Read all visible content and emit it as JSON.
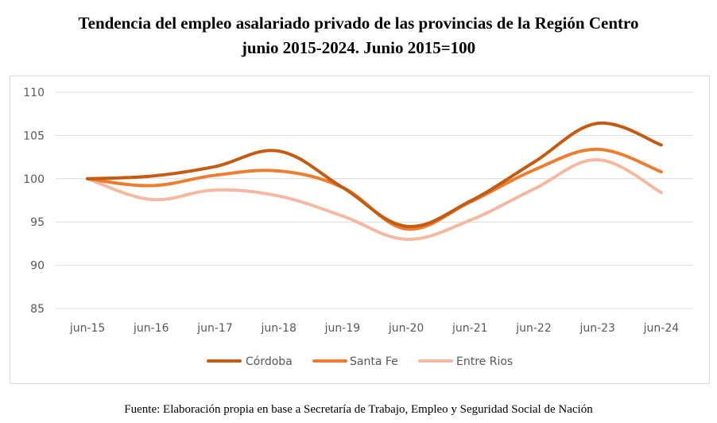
{
  "title_line1": "Tendencia del empleo asalariado privado de las provincias de la Región Centro",
  "title_line2": "junio 2015-2024. Junio 2015=100",
  "source": "Fuente: Elaboración propia en base a Secretaría de Trabajo, Empleo y Seguridad Social de Nación",
  "chart_data": {
    "type": "line",
    "categories": [
      "jun-15",
      "jun-16",
      "jun-17",
      "jun-18",
      "jun-19",
      "jun-20",
      "jun-21",
      "jun-22",
      "jun-23",
      "jun-24"
    ],
    "ylim": [
      85,
      110
    ],
    "yticks": [
      85,
      90,
      95,
      100,
      105,
      110
    ],
    "grid": true,
    "legend_position": "bottom",
    "series": [
      {
        "name": "Córdoba",
        "color": "#c55a11",
        "values": [
          100.0,
          100.3,
          101.4,
          103.2,
          99.0,
          94.5,
          97.4,
          101.9,
          106.4,
          103.9
        ]
      },
      {
        "name": "Santa Fe",
        "color": "#ed7d31",
        "values": [
          100.0,
          99.2,
          100.4,
          100.9,
          99.0,
          94.2,
          97.3,
          101.0,
          103.4,
          100.8
        ]
      },
      {
        "name": "Entre Rios",
        "color": "#f4b9a0",
        "values": [
          100.0,
          97.6,
          98.7,
          98.0,
          95.7,
          93.0,
          95.2,
          98.8,
          102.2,
          98.4
        ]
      }
    ]
  }
}
